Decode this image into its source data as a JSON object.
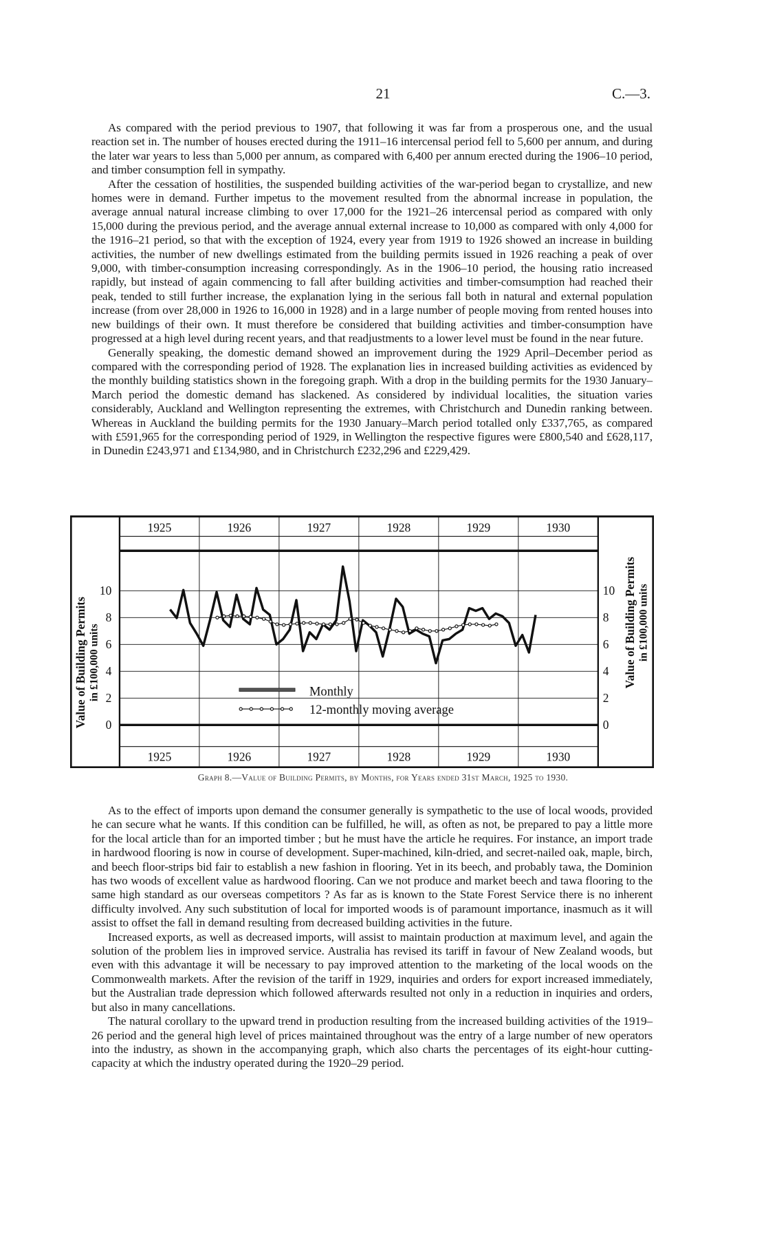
{
  "header": {
    "page_number": "21",
    "reference": "C.—3."
  },
  "top_paragraphs": [
    "As compared with the period previous to 1907, that following it was far from a prosperous one, and the usual reaction set in. The number of houses erected during the 1911–16 intercensal period fell to 5,600 per annum, and during the later war years to less than 5,000 per annum, as compared with 6,400 per annum erected during the 1906–10 period, and timber consumption fell in sympathy.",
    "After the cessation of hostilities, the suspended building activities of the war-period began to crystallize, and new homes were in demand. Further impetus to the movement resulted from the abnormal increase in population, the average annual natural increase climbing to over 17,000 for the 1921–26 intercensal period as compared with only 15,000 during the previous period, and the average annual external increase to 10,000 as compared with only 4,000 for the 1916–21 period, so that with the exception of 1924, every year from 1919 to 1926 showed an increase in building activities, the number of new dwellings estimated from the building permits issued in 1926 reaching a peak of over 9,000, with timber-consumption increasing correspondingly. As in the 1906–10 period, the housing ratio increased rapidly, but instead of again commencing to fall after building activities and timber-comsumption had reached their peak, tended to still further increase, the explanation lying in the serious fall both in natural and external population increase (from over 28,000 in 1926 to 16,000 in 1928) and in a large number of people moving from rented houses into new buildings of their own. It must therefore be considered that building activities and timber-consumption have progressed at a high level during recent years, and that readjustments to a lower level must be found in the near future.",
    "Generally speaking, the domestic demand showed an improvement during the 1929 April–December period as compared with the corresponding period of 1928. The explanation lies in increased building activities as evidenced by the monthly building statistics shown in the foregoing graph. With a drop in the building permits for the 1930 January–March period the domestic demand has slackened. As considered by individual localities, the situation varies considerably, Auckland and Wellington representing the extremes, with Christchurch and Dunedin ranking between. Whereas in Auckland the building permits for the 1930 January–March period totalled only £337,765, as compared with £591,965 for the corresponding period of 1929, in Wellington the respective figures were £800,540 and £628,117, in Dunedin £243,971 and £134,980, and in Christchurch £232,296 and £229,429."
  ],
  "caption": "Graph 8.—Value of Building Permits, by Months, for Years ended 31st March, 1925 to 1930.",
  "bottom_paragraphs": [
    "As to the effect of imports upon demand the consumer generally is sympathetic to the use of local woods, provided he can secure what he wants. If this condition can be fulfilled, he will, as often as not, be prepared to pay a little more for the local article than for an imported timber ; but he must have the article he requires. For instance, an import trade in hardwood flooring is now in course of development. Super-machined, kiln-dried, and secret-nailed oak, maple, birch, and beech floor-strips bid fair to establish a new fashion in flooring. Yet in its beech, and probably tawa, the Dominion has two woods of excellent value as hardwood flooring. Can we not produce and market beech and tawa flooring to the same high standard as our overseas competitors ? As far as is known to the State Forest Service there is no inherent difficulty involved. Any such substitution of local for imported woods is of paramount importance, inasmuch as it will assist to offset the fall in demand resulting from decreased building activities in the future.",
    "Increased exports, as well as decreased imports, will assist to maintain production at maximum level, and again the solution of the problem lies in improved service. Australia has revised its tariff in favour of New Zealand woods, but even with this advantage it will be necessary to pay improved attention to the marketing of the local woods on the Commonwealth markets. After the revision of the tariff in 1929, inquiries and orders for export increased immediately, but the Australian trade depression which followed afterwards resulted not only in a reduction in inquiries and orders, but also in many cancellations.",
    "The natural corollary to the upward trend in production resulting from the increased building activities of the 1919–26 period and the general high level of prices maintained throughout was the entry of a large number of new operators into the industry, as shown in the accompanying graph, which also charts the percentages of its eight-hour cutting-capacity at which the industry operated during the 1920–29 period."
  ],
  "chart_data": {
    "type": "line",
    "title": "",
    "ylabel": "Value of Building Permits in £100,000 units",
    "ylabel_lines": [
      "Value of Building Permits",
      "in £100,000 units"
    ],
    "years": [
      "1925",
      "1926",
      "1927",
      "1928",
      "1929",
      "1930"
    ],
    "yticks": [
      "0",
      "2",
      "4",
      "6",
      "8",
      "10"
    ],
    "ylim": [
      0,
      10
    ],
    "x_unit": "months, grouped by year ended 31st March",
    "grid": true,
    "legend_position": "bottom-center",
    "series": [
      {
        "name": "Monthly",
        "style": "solid-thick",
        "values": [
          8.6,
          7.97,
          10.05,
          7.6,
          6.8,
          5.9,
          7.8,
          9.9,
          7.8,
          7.3,
          9.7,
          7.9,
          7.5,
          10.2,
          8.6,
          8.2,
          6.0,
          6.4,
          7.1,
          9.3,
          5.5,
          6.9,
          6.4,
          7.5,
          7.1,
          7.8,
          11.8,
          9.2,
          5.5,
          7.8,
          7.4,
          6.9,
          5.1,
          7.1,
          9.4,
          8.8,
          6.8,
          7.1,
          6.8,
          6.6,
          4.6,
          6.3,
          6.4,
          6.8,
          7.1,
          8.7,
          8.5,
          8.7,
          7.9,
          8.3,
          8.1,
          7.6,
          5.9,
          6.7,
          5.4,
          8.2
        ]
      },
      {
        "name": "12-monthly moving average",
        "style": "dotted-markers",
        "values": [
          8.0,
          8.1,
          8.15,
          8.1,
          8.1,
          8.05,
          8.0,
          7.9,
          7.7,
          7.5,
          7.45,
          7.5,
          7.55,
          7.6,
          7.6,
          7.55,
          7.5,
          7.5,
          7.5,
          7.6,
          7.9,
          7.85,
          7.6,
          7.4,
          7.3,
          7.2,
          7.1,
          7.0,
          6.9,
          7.0,
          7.2,
          7.1,
          7.0,
          7.0,
          7.1,
          7.2,
          7.35,
          7.45,
          7.5,
          7.5,
          7.45,
          7.4,
          7.5
        ]
      }
    ],
    "colors": {
      "ink": "#111111",
      "paper": "#ffffff"
    }
  }
}
